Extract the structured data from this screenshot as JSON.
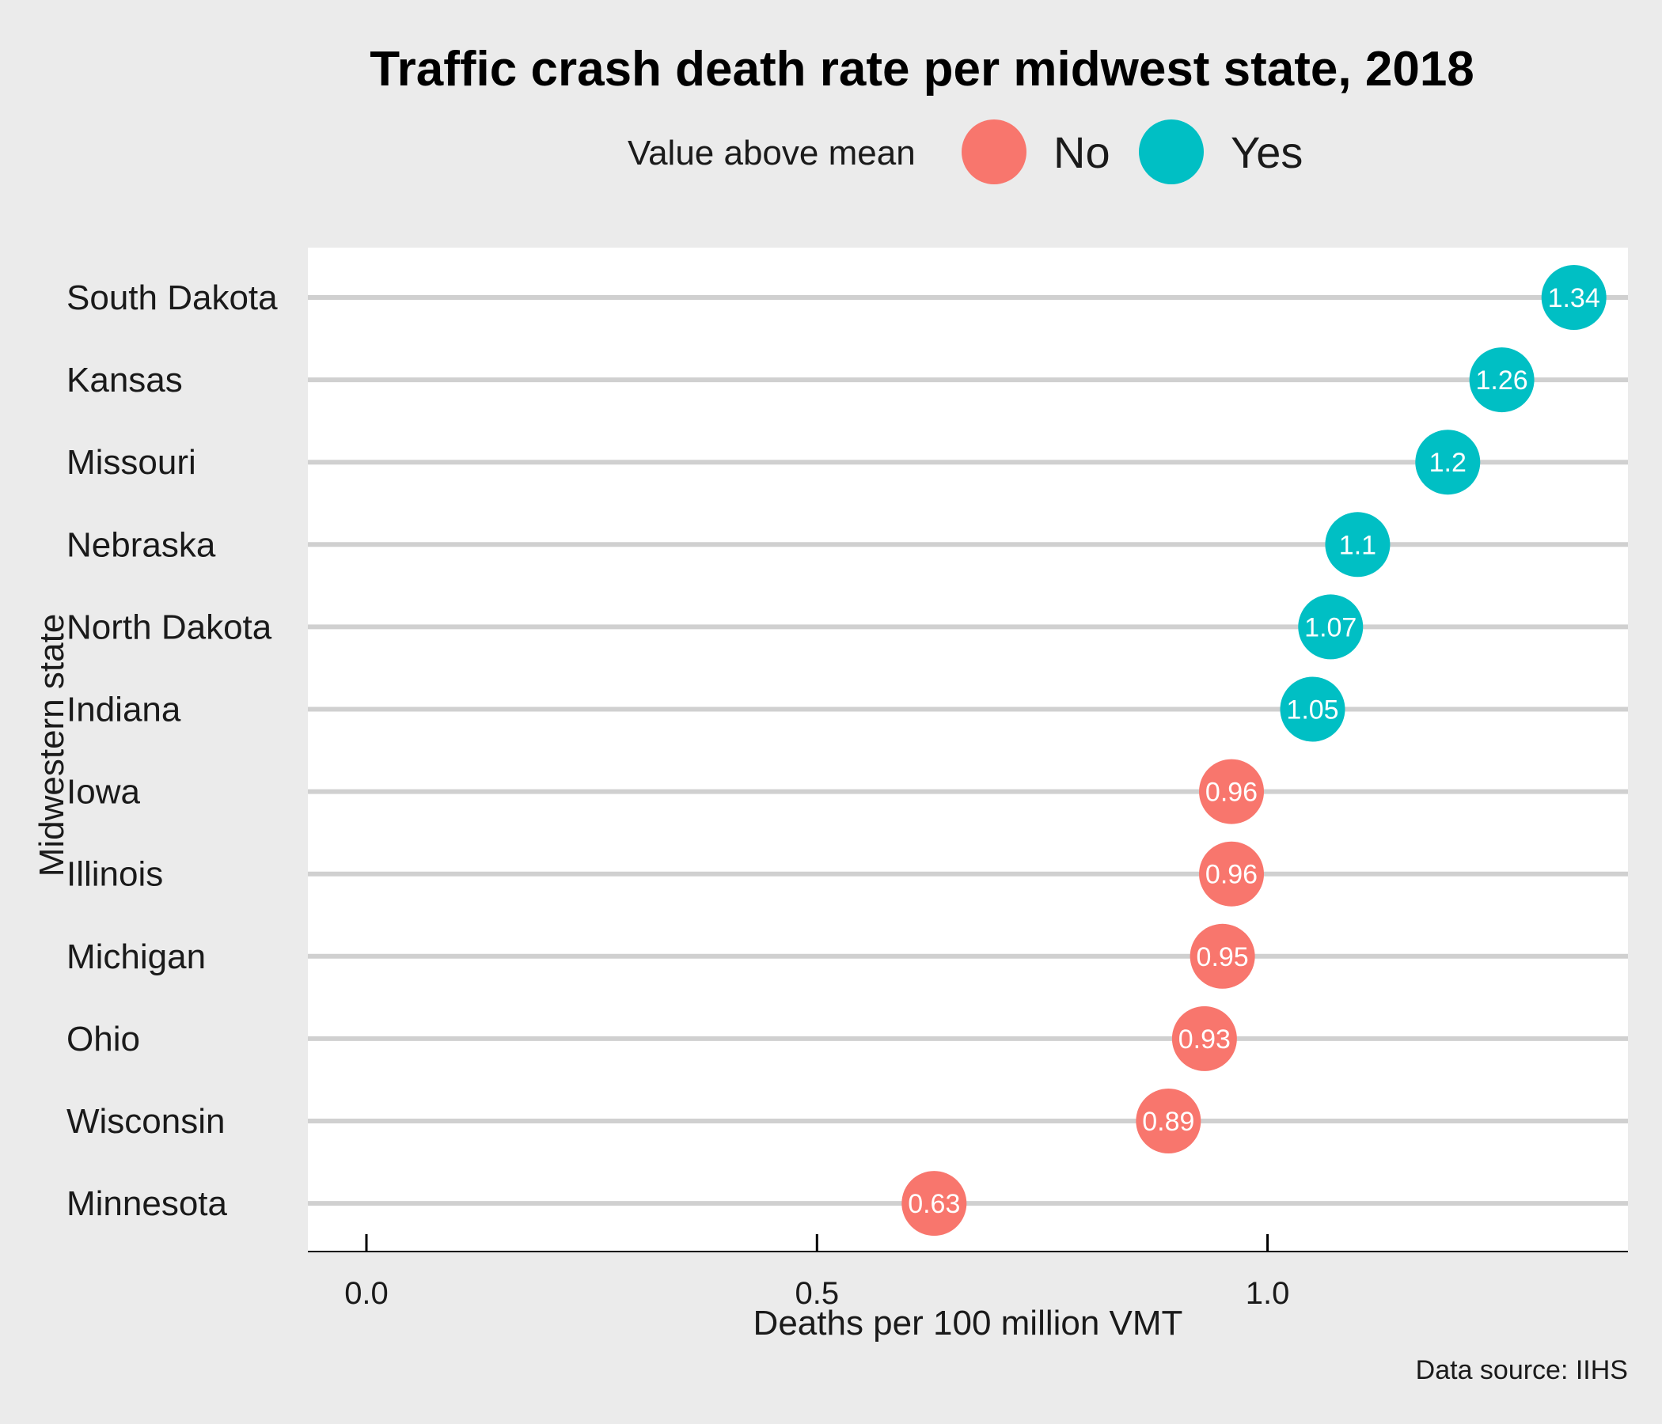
{
  "chart_data": {
    "type": "scatter",
    "title": "Traffic crash death rate per midwest state, 2018",
    "xlabel": "Deaths per 100 million VMT",
    "ylabel": "Midwestern state",
    "caption": "Data source: IIHS",
    "xlim": [
      -0.065,
      1.4
    ],
    "xticks": [
      0.0,
      0.5,
      1.0
    ],
    "xtick_labels": [
      "0.0",
      "0.5",
      "1.0"
    ],
    "grid": true,
    "legend": {
      "title": "Value above mean",
      "placement": "top",
      "entries": [
        {
          "label": "No",
          "color": "#F8766D"
        },
        {
          "label": "Yes",
          "color": "#00BFC4"
        }
      ]
    },
    "categories": [
      "South Dakota",
      "Kansas",
      "Missouri",
      "Nebraska",
      "North Dakota",
      "Indiana",
      "Iowa",
      "Illinois",
      "Michigan",
      "Ohio",
      "Wisconsin",
      "Minnesota"
    ],
    "values": [
      1.34,
      1.26,
      1.2,
      1.1,
      1.07,
      1.05,
      0.96,
      0.96,
      0.95,
      0.93,
      0.89,
      0.63
    ],
    "value_labels": [
      "1.34",
      "1.26",
      "1.2",
      "1.1",
      "1.07",
      "1.05",
      "0.96",
      "0.96",
      "0.95",
      "0.93",
      "0.89",
      "0.63"
    ],
    "above_mean": [
      "Yes",
      "Yes",
      "Yes",
      "Yes",
      "Yes",
      "Yes",
      "No",
      "No",
      "No",
      "No",
      "No",
      "No"
    ]
  }
}
